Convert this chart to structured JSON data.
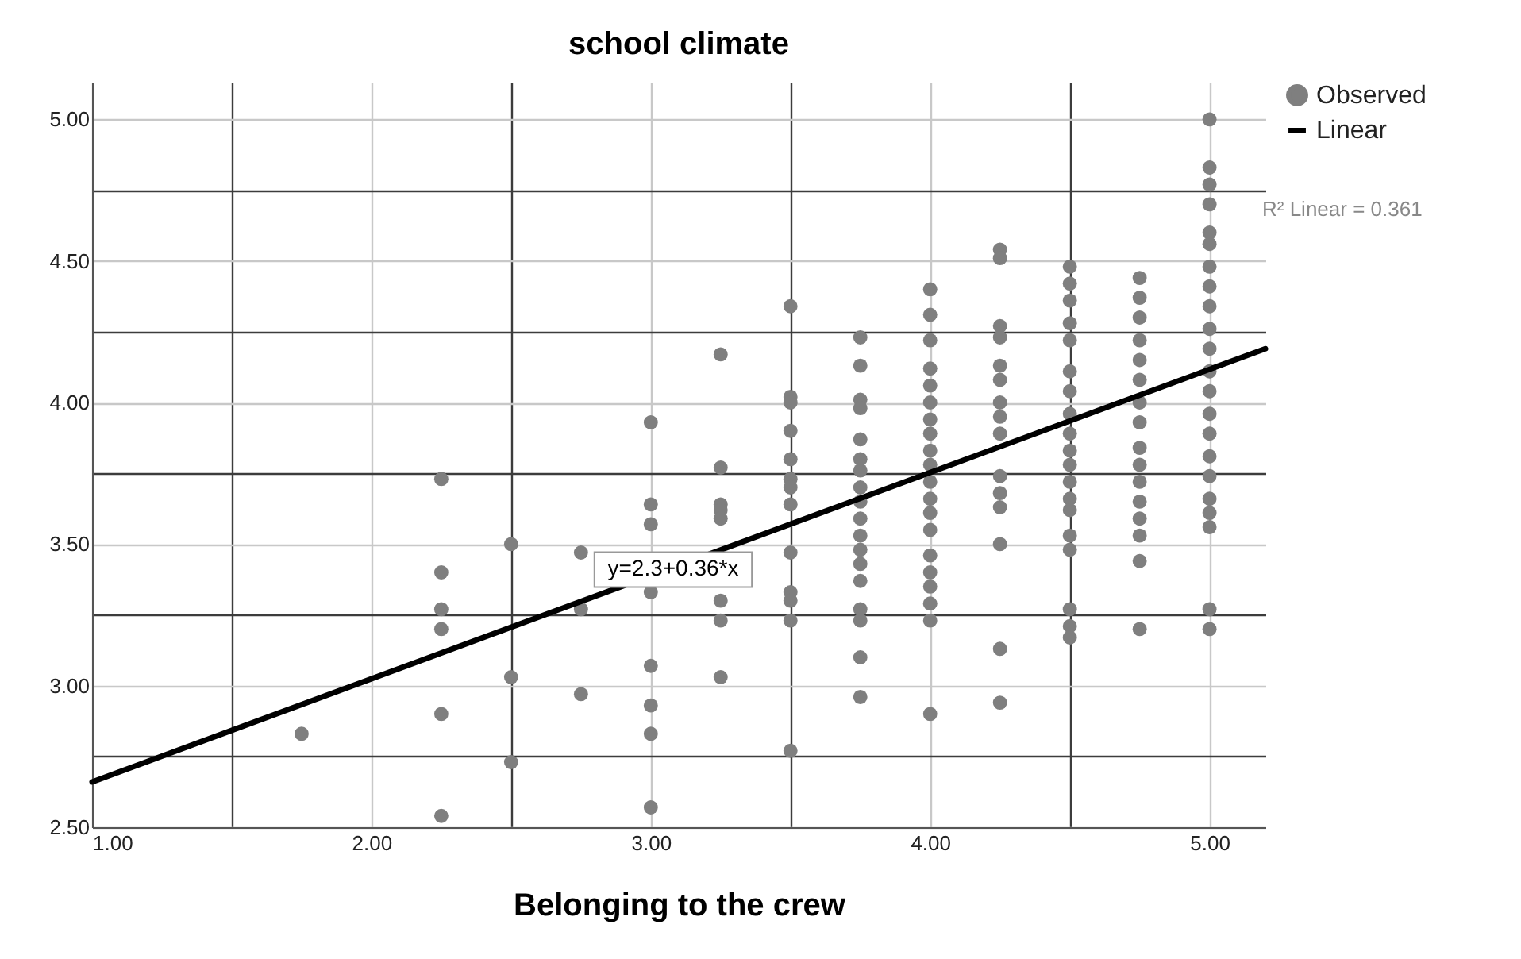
{
  "chart_data": {
    "type": "scatter",
    "title": "school climate",
    "xlabel": "Belonging to the crew",
    "xlim": [
      1,
      5.2
    ],
    "ylim": [
      2.5,
      5.13
    ],
    "xticks": [
      {
        "value": 1,
        "label": "1.00"
      },
      {
        "value": 1.5,
        "label": null
      },
      {
        "value": 2,
        "label": "2.00"
      },
      {
        "value": 2.5,
        "label": null
      },
      {
        "value": 3,
        "label": "3.00"
      },
      {
        "value": 3.5,
        "label": null
      },
      {
        "value": 4,
        "label": "4.00"
      },
      {
        "value": 4.5,
        "label": null
      },
      {
        "value": 5,
        "label": "5.00"
      }
    ],
    "yticks": [
      {
        "value": 2.5,
        "label": "2.50"
      },
      {
        "value": 2.75,
        "label": null
      },
      {
        "value": 3,
        "label": "3.00"
      },
      {
        "value": 3.25,
        "label": null
      },
      {
        "value": 3.5,
        "label": "3.50"
      },
      {
        "value": 3.75,
        "label": null
      },
      {
        "value": 4,
        "label": "4.00"
      },
      {
        "value": 4.25,
        "label": null
      },
      {
        "value": 4.5,
        "label": "4.50"
      },
      {
        "value": 4.75,
        "label": null
      },
      {
        "value": 5,
        "label": "5.00"
      }
    ],
    "grid": true,
    "legend": "top right",
    "annotations": [
      {
        "text": "y=2.3+0.36*x",
        "x": 3.08,
        "y": 3.41
      },
      "R² Linear = 0.361"
    ],
    "series": [
      {
        "name": "Observed",
        "marker": "circle",
        "color": "#7f7f7f",
        "x": [
          1.75,
          2.25,
          2.25,
          2.25,
          2.25,
          2.25,
          2.25,
          2.5,
          2.5,
          2.5,
          2.75,
          2.75,
          2.75,
          3,
          3,
          3,
          3,
          3,
          3,
          3,
          3,
          3.25,
          3.25,
          3.25,
          3.25,
          3.25,
          3.25,
          3.25,
          3.25,
          3.5,
          3.5,
          3.5,
          3.5,
          3.5,
          3.5,
          3.5,
          3.5,
          3.5,
          3.5,
          3.5,
          3.5,
          3.5,
          3.75,
          3.75,
          3.75,
          3.75,
          3.75,
          3.75,
          3.75,
          3.75,
          3.75,
          3.75,
          3.75,
          3.75,
          3.75,
          3.75,
          3.75,
          3.75,
          3.75,
          3.75,
          4,
          4,
          4,
          4,
          4,
          4,
          4,
          4,
          4,
          4,
          4,
          4,
          4,
          4,
          4,
          4,
          4,
          4,
          4,
          4,
          4.25,
          4.25,
          4.25,
          4.25,
          4.25,
          4.25,
          4.25,
          4.25,
          4.25,
          4.25,
          4.25,
          4.25,
          4.25,
          4.25,
          4.25,
          4.5,
          4.5,
          4.5,
          4.5,
          4.5,
          4.5,
          4.5,
          4.5,
          4.5,
          4.5,
          4.5,
          4.5,
          4.5,
          4.5,
          4.5,
          4.5,
          4.5,
          4.5,
          4.5,
          4.75,
          4.75,
          4.75,
          4.75,
          4.75,
          4.75,
          4.75,
          4.75,
          4.75,
          4.75,
          4.75,
          4.75,
          4.75,
          4.75,
          4.75,
          4.75,
          5,
          5,
          5,
          5,
          5,
          5,
          5,
          5,
          5,
          5,
          5,
          5,
          5,
          5,
          5,
          5,
          5,
          5,
          5,
          5,
          5,
          5
        ],
        "values": [
          2.83,
          3.73,
          3.4,
          3.27,
          3.2,
          2.9,
          2.54,
          3.5,
          3.03,
          2.73,
          3.47,
          3.27,
          2.97,
          3.93,
          3.64,
          3.57,
          3.33,
          3.07,
          2.93,
          2.83,
          2.57,
          4.17,
          3.77,
          3.64,
          3.62,
          3.59,
          3.3,
          3.23,
          3.03,
          4.34,
          4.02,
          4,
          3.9,
          3.8,
          3.73,
          3.7,
          3.64,
          3.47,
          3.33,
          3.3,
          3.23,
          2.77,
          4.23,
          4.13,
          4.01,
          3.98,
          3.87,
          3.8,
          3.76,
          3.7,
          3.65,
          3.59,
          3.53,
          3.48,
          3.43,
          3.37,
          3.27,
          3.23,
          3.1,
          2.96,
          4.4,
          4.31,
          4.22,
          4.12,
          4.06,
          4,
          3.94,
          3.89,
          3.83,
          3.78,
          3.72,
          3.66,
          3.61,
          3.55,
          3.46,
          3.4,
          3.35,
          3.29,
          3.23,
          2.9,
          4.54,
          4.51,
          4.27,
          4.23,
          4.13,
          4.08,
          4,
          3.95,
          3.89,
          3.74,
          3.68,
          3.63,
          3.5,
          3.13,
          2.94,
          4.48,
          4.42,
          4.36,
          4.28,
          4.22,
          4.11,
          4.04,
          3.96,
          3.89,
          3.83,
          3.78,
          3.72,
          3.66,
          3.62,
          3.53,
          3.48,
          3.27,
          3.21,
          3.17,
          4.44,
          4.37,
          4.3,
          4.22,
          4.15,
          4.08,
          4,
          3.93,
          3.84,
          3.78,
          3.72,
          3.65,
          3.59,
          3.53,
          3.44,
          3.2,
          5,
          4.83,
          4.77,
          4.7,
          4.6,
          4.56,
          4.48,
          4.41,
          4.34,
          4.26,
          4.19,
          4.11,
          4.04,
          3.96,
          3.89,
          3.81,
          3.74,
          3.66,
          3.61,
          3.56,
          3.27,
          3.2
        ]
      },
      {
        "name": "Linear",
        "type": "line",
        "color": "#000000",
        "line_style": "solid",
        "x": [
          1,
          5.2
        ],
        "values": [
          2.66,
          4.19
        ]
      }
    ]
  }
}
